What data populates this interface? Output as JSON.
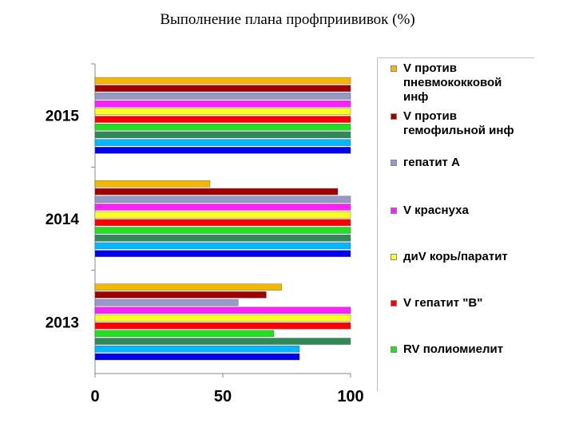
{
  "title": "Выполнение плана профприививок  (%)",
  "chart_data": {
    "type": "bar",
    "orientation": "horizontal",
    "categories": [
      "2013",
      "2014",
      "2015"
    ],
    "xlim": [
      0,
      100
    ],
    "xticks": [
      "0",
      "50",
      "100"
    ],
    "legend_position": "right",
    "series": [
      {
        "name": "V против\nпневмококковой\nинф",
        "color": "#f5b800",
        "values": [
          73,
          45,
          100
        ]
      },
      {
        "name": "V против\nгемофильной инф",
        "color": "#a00000",
        "values": [
          67,
          95,
          100
        ]
      },
      {
        "name": "гепатит А",
        "color": "#9898c8",
        "values": [
          56,
          100,
          100
        ]
      },
      {
        "name": "V краснуха",
        "color": "#ff20ff",
        "values": [
          100,
          100,
          100
        ]
      },
      {
        "name": "диV корь/паратит",
        "color": "#ffff20",
        "values": [
          100,
          100,
          100
        ]
      },
      {
        "name": "V гепатит \"В\"",
        "color": "#ff0000",
        "values": [
          100,
          100,
          100
        ]
      },
      {
        "name": "RV полиомиелит",
        "color": "#20e020",
        "values": [
          70,
          100,
          100
        ]
      },
      {
        "name": "",
        "color": "#2e8b57",
        "values": [
          100,
          100,
          100
        ]
      },
      {
        "name": "",
        "color": "#00b8ff",
        "values": [
          80,
          100,
          100
        ]
      },
      {
        "name": "",
        "color": "#0000ee",
        "values": [
          80,
          100,
          100
        ]
      }
    ]
  }
}
